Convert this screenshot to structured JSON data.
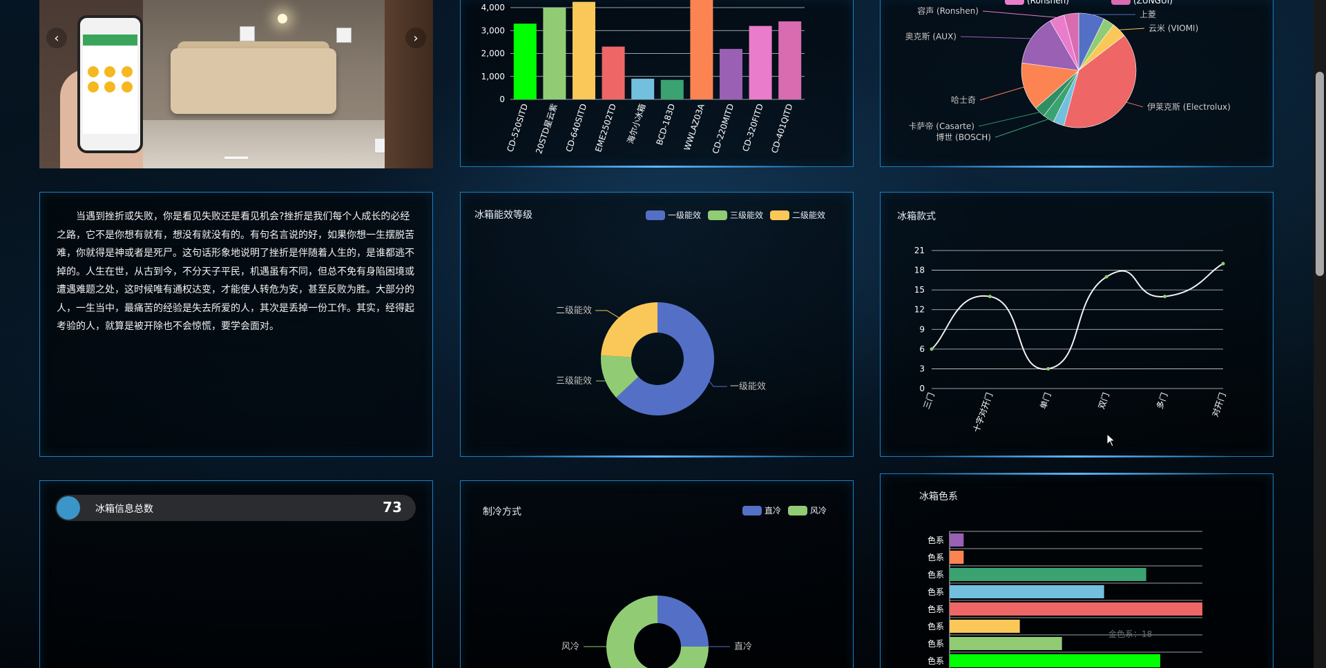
{
  "carousel": {
    "prev_icon": "chevron-left-icon",
    "next_icon": "chevron-right-icon",
    "prev_glyph": "‹",
    "next_glyph": "›"
  },
  "quote_text": "当遇到挫折或失败，你是看见失败还是看见机会?挫折是我们每个人成长的必经之路，它不是你想有就有，想没有就没有的。有句名言说的好，如果你想一生摆脱苦难，你就得是神或者是死尸。这句话形象地说明了挫折是伴随着人生的，是谁都逃不掉的。人生在世，从古到今，不分天子平民，机遇虽有不同，但总不免有身陷困境或遭遇难题之处，这时候唯有通权达变，才能使人转危为安，甚至反败为胜。大部分的人，一生当中，最痛苦的经验是失去所爱的人，其次是丢掉一份工作。其实，经得起考验的人，就算是被开除也不会惊慌，要学会面对。",
  "total": {
    "label": "冰箱信息总数",
    "value": "73"
  },
  "colors": {
    "panel_border": "#1b7fc4",
    "blue": "#5470c6",
    "green": "#91cc75",
    "yellow": "#fac858"
  },
  "chart_data": [
    {
      "id": "model_bar",
      "type": "bar",
      "title": "",
      "categories": [
        "BCD-520SITD",
        "BCD-500STD星云紫",
        "BCD-640SITD",
        "BCD-EME2502TD",
        "BCD-海尔小冰箱",
        "BCD-BCD-183D",
        "BCD-WWLAZ03A",
        "BCD-220MITD",
        "BCD-320FITD",
        "BCD-401QITD"
      ],
      "visible_tick_labels": [
        "CD-520SITD",
        "20STD星云紫",
        "CD-640SITD",
        "EME2502TD",
        "海尔小冰箱",
        "BCD-183D",
        "WWLAZ03A",
        "CD-220MITD",
        "CD-320FITD",
        "CD-401QITD"
      ],
      "values": [
        3300,
        4000,
        4250,
        2300,
        900,
        850,
        4600,
        2200,
        3200,
        3400
      ],
      "bar_colors": [
        "#00ff00",
        "#91cc75",
        "#fac858",
        "#ee6666",
        "#73c0de",
        "#3ba272",
        "#fc8452",
        "#9a60b4",
        "#ea7ccc",
        "#d96bb0"
      ],
      "yticks": [
        "0",
        "1,000",
        "2,000",
        "3,000",
        "4,000"
      ],
      "ylim": [
        0,
        4400
      ]
    },
    {
      "id": "brand_pie",
      "type": "pie",
      "title": "",
      "slices": [
        {
          "name": "上菱",
          "value": 7,
          "color": "#5470c6"
        },
        {
          "name": "",
          "value": 3,
          "color": "#91cc75"
        },
        {
          "name": "云米 (VIOMI)",
          "value": 4,
          "color": "#fac858"
        },
        {
          "name": "伊莱克斯 (Electrolux)",
          "value": 38,
          "color": "#ee6666"
        },
        {
          "name": "",
          "value": 3,
          "color": "#73c0de"
        },
        {
          "name": "博世 (BOSCH)",
          "value": 3,
          "color": "#3ba272"
        },
        {
          "name": "卡萨帝 (Casarte)",
          "value": 3,
          "color": "#2f8f63"
        },
        {
          "name": "哈士奇",
          "value": 13,
          "color": "#fc8452"
        },
        {
          "name": "奥克斯 (AUX)",
          "value": 14,
          "color": "#9a60b4"
        },
        {
          "name": "容声 (Ronshen)",
          "value": 4,
          "color": "#ea7ccc"
        },
        {
          "name": "",
          "value": 4,
          "color": "#d96bb0"
        }
      ],
      "legend": [
        "(Ronshen)",
        "(ZUNGUI)"
      ]
    },
    {
      "id": "energy_donut",
      "type": "pie",
      "title": "冰箱能效等级",
      "legend": [
        "一级能效",
        "三级能效",
        "二级能效"
      ],
      "slices": [
        {
          "name": "一级能效",
          "value": 63,
          "color": "#5470c6"
        },
        {
          "name": "三级能效",
          "value": 13,
          "color": "#91cc75"
        },
        {
          "name": "二级能效",
          "value": 24,
          "color": "#fac858"
        }
      ]
    },
    {
      "id": "style_line",
      "type": "line",
      "title": "冰箱款式",
      "x": [
        "三门",
        "十字对开门",
        "单门",
        "双门",
        "多门",
        "对开门"
      ],
      "y": [
        6,
        14,
        3,
        17,
        14,
        19
      ],
      "yticks": [
        "0",
        "3",
        "6",
        "9",
        "12",
        "15",
        "18",
        "21"
      ],
      "ylim": [
        0,
        21
      ],
      "grid": true
    },
    {
      "id": "cooling_donut",
      "type": "pie",
      "title": "制冷方式",
      "legend": [
        "直冷",
        "风冷"
      ],
      "slices": [
        {
          "name": "直冷",
          "value": 25,
          "color": "#5470c6"
        },
        {
          "name": "风冷",
          "value": 75,
          "color": "#91cc75"
        }
      ]
    },
    {
      "id": "color_hbar",
      "type": "bar",
      "orientation": "horizontal",
      "title": "冰箱色系",
      "categories": [
        "色系",
        "色系",
        "色系",
        "色系",
        "色系",
        "色系",
        "色系",
        "色系"
      ],
      "values": [
        1,
        1,
        14,
        11,
        18,
        5,
        8,
        15
      ],
      "bar_colors": [
        "#9a60b4",
        "#fc8452",
        "#3ba272",
        "#73c0de",
        "#ee6666",
        "#fac858",
        "#91cc75",
        "#00ff00"
      ],
      "xlim": [
        0,
        18
      ],
      "tooltip": "金色系：18"
    }
  ]
}
